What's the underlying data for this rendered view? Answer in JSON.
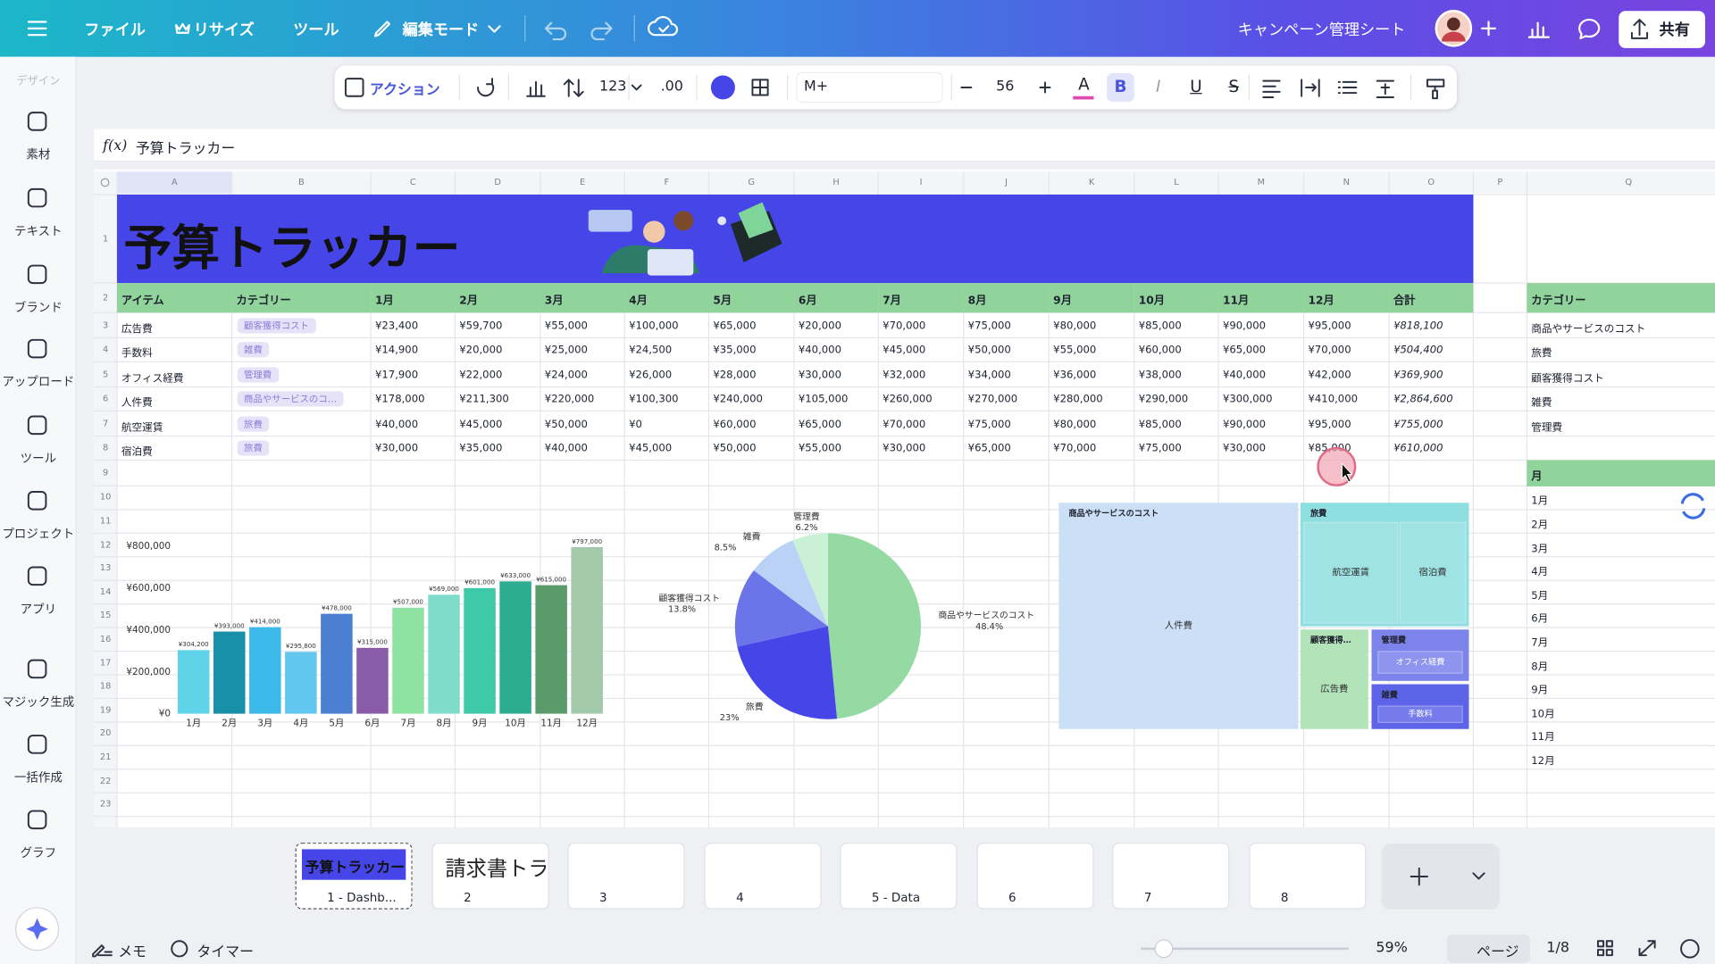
{
  "topbar": {
    "menu": [
      "ファイル",
      "リサイズ",
      "ツール",
      "編集モード"
    ],
    "doc_title": "キャンペーン管理シート",
    "share": "共有"
  },
  "toolbar": {
    "action": "アクション",
    "number_format": "123",
    "decimals": ".00",
    "font": "M+",
    "font_size": 56,
    "text_color": "A",
    "format_buttons": [
      "B",
      "I",
      "U",
      "S"
    ]
  },
  "sidebar": {
    "section": "デザイン",
    "items": [
      "素材",
      "テキスト",
      "ブランド",
      "アップロード",
      "ツール",
      "プロジェクト",
      "アプリ",
      "マジック生成",
      "一括作成",
      "グラフ"
    ]
  },
  "formula_bar": {
    "label": "f(x)",
    "value": "予算トラッカー"
  },
  "sheet": {
    "columns": [
      "A",
      "B",
      "C",
      "D",
      "E",
      "F",
      "G",
      "H",
      "I",
      "J",
      "K",
      "L",
      "M",
      "N",
      "O",
      "P",
      "Q"
    ],
    "row_numbers": [
      1,
      2,
      3,
      4,
      5,
      6,
      7,
      8,
      9,
      10,
      11,
      12,
      13,
      14,
      15,
      16,
      17,
      18,
      19,
      20,
      21,
      22,
      23
    ],
    "title": "予算トラッカー",
    "header": [
      "アイテム",
      "カテゴリー",
      "1月",
      "2月",
      "3月",
      "4月",
      "5月",
      "6月",
      "7月",
      "8月",
      "9月",
      "10月",
      "11月",
      "12月",
      "合計"
    ],
    "rows": [
      {
        "item": "広告費",
        "category": "顧客獲得コスト",
        "months": [
          "¥23,400",
          "¥59,700",
          "¥55,000",
          "¥100,000",
          "¥65,000",
          "¥20,000",
          "¥70,000",
          "¥75,000",
          "¥80,000",
          "¥85,000",
          "¥90,000",
          "¥95,000"
        ],
        "total": "¥818,100"
      },
      {
        "item": "手数料",
        "category": "雑費",
        "months": [
          "¥14,900",
          "¥20,000",
          "¥25,000",
          "¥24,500",
          "¥35,000",
          "¥40,000",
          "¥45,000",
          "¥50,000",
          "¥55,000",
          "¥60,000",
          "¥65,000",
          "¥70,000"
        ],
        "total": "¥504,400"
      },
      {
        "item": "オフィス経費",
        "category": "管理費",
        "months": [
          "¥17,900",
          "¥22,000",
          "¥24,000",
          "¥26,000",
          "¥28,000",
          "¥30,000",
          "¥32,000",
          "¥34,000",
          "¥36,000",
          "¥38,000",
          "¥40,000",
          "¥42,000"
        ],
        "total": "¥369,900"
      },
      {
        "item": "人件費",
        "category": "商品やサービスのコ…",
        "months": [
          "¥178,000",
          "¥211,300",
          "¥220,000",
          "¥100,300",
          "¥240,000",
          "¥105,000",
          "¥260,000",
          "¥270,000",
          "¥280,000",
          "¥290,000",
          "¥300,000",
          "¥410,000"
        ],
        "total": "¥2,864,600"
      },
      {
        "item": "航空運賃",
        "category": "旅費",
        "months": [
          "¥40,000",
          "¥45,000",
          "¥50,000",
          "¥0",
          "¥60,000",
          "¥65,000",
          "¥70,000",
          "¥75,000",
          "¥80,000",
          "¥85,000",
          "¥90,000",
          "¥95,000"
        ],
        "total": "¥755,000"
      },
      {
        "item": "宿泊費",
        "category": "旅費",
        "months": [
          "¥30,000",
          "¥35,000",
          "¥40,000",
          "¥45,000",
          "¥50,000",
          "¥55,000",
          "¥30,000",
          "¥65,000",
          "¥70,000",
          "¥75,000",
          "¥30,000",
          "¥85,000"
        ],
        "total": "¥610,000"
      }
    ],
    "side_table": {
      "category_header": "カテゴリー",
      "categories": [
        "商品やサービスのコスト",
        "旅費",
        "顧客獲得コスト",
        "雑費",
        "管理費"
      ],
      "month_header": "月",
      "months": [
        "1月",
        "2月",
        "3月",
        "4月",
        "5月",
        "6月",
        "7月",
        "8月",
        "9月",
        "10月",
        "11月",
        "12月"
      ]
    },
    "treemap": [
      {
        "label": "商品やサービスのコスト",
        "children": [
          "人件費"
        ]
      },
      {
        "label": "旅費",
        "children": [
          "航空運賃",
          "宿泊費"
        ]
      },
      {
        "label": "顧客獲得…",
        "children": [
          "広告費"
        ]
      },
      {
        "label": "管理費",
        "children": [
          "オフィス経費"
        ]
      },
      {
        "label": "雑費",
        "children": [
          "手数料"
        ]
      }
    ]
  },
  "chart_data": [
    {
      "type": "bar",
      "categories": [
        "1月",
        "2月",
        "3月",
        "4月",
        "5月",
        "6月",
        "7月",
        "8月",
        "9月",
        "10月",
        "11月",
        "12月"
      ],
      "values": [
        304200,
        393000,
        414000,
        295800,
        478000,
        315000,
        507000,
        569000,
        601000,
        633000,
        615000,
        797000
      ],
      "value_labels": [
        "¥304,200",
        "¥393,000",
        "¥414,000",
        "¥295,800",
        "¥478,000",
        "¥315,000",
        "¥507,000",
        "¥569,000",
        "¥601,000",
        "¥633,000",
        "¥615,000",
        "¥797,000"
      ],
      "colors": [
        "#5fd4e8",
        "#1a8fa8",
        "#3cb9e8",
        "#62c6ee",
        "#4a7fd2",
        "#8a5ba9",
        "#8fe3a2",
        "#80dcca",
        "#3ec9a8",
        "#2eac8f",
        "#5a9a6b",
        "#a2c9aa"
      ],
      "ylim": [
        0,
        800000
      ],
      "yticks": [
        {
          "value": 0,
          "label": "¥0"
        },
        {
          "value": 200000,
          "label": "¥200,000"
        },
        {
          "value": 400000,
          "label": "¥400,000"
        },
        {
          "value": 600000,
          "label": "¥600,000"
        },
        {
          "value": 800000,
          "label": "¥800,000"
        }
      ]
    },
    {
      "type": "pie",
      "categories": [
        "商品やサービスのコスト",
        "旅費",
        "顧客獲得コスト",
        "雑費",
        "管理費"
      ],
      "values": [
        48.4,
        23,
        13.8,
        8.5,
        6.2
      ],
      "value_labels": [
        "48.4%",
        "23%",
        "13.8%",
        "8.5%",
        "6.2%"
      ],
      "colors": [
        "#94daa2",
        "#4545e8",
        "#6c74ea",
        "#b9d2f6",
        "#caf1d6"
      ]
    }
  ],
  "pages": [
    {
      "label": "1 - Dashb...",
      "preview": "予算トラッカー"
    },
    {
      "label": "2",
      "preview": "請求書トラ"
    },
    {
      "label": "3"
    },
    {
      "label": "4"
    },
    {
      "label": "5 - Data"
    },
    {
      "label": "6"
    },
    {
      "label": "7"
    },
    {
      "label": "8"
    }
  ],
  "bottombar": {
    "notes": "メモ",
    "timer": "タイマー",
    "zoom": "59%",
    "view": "ページ",
    "page_indicator": "1/8"
  }
}
